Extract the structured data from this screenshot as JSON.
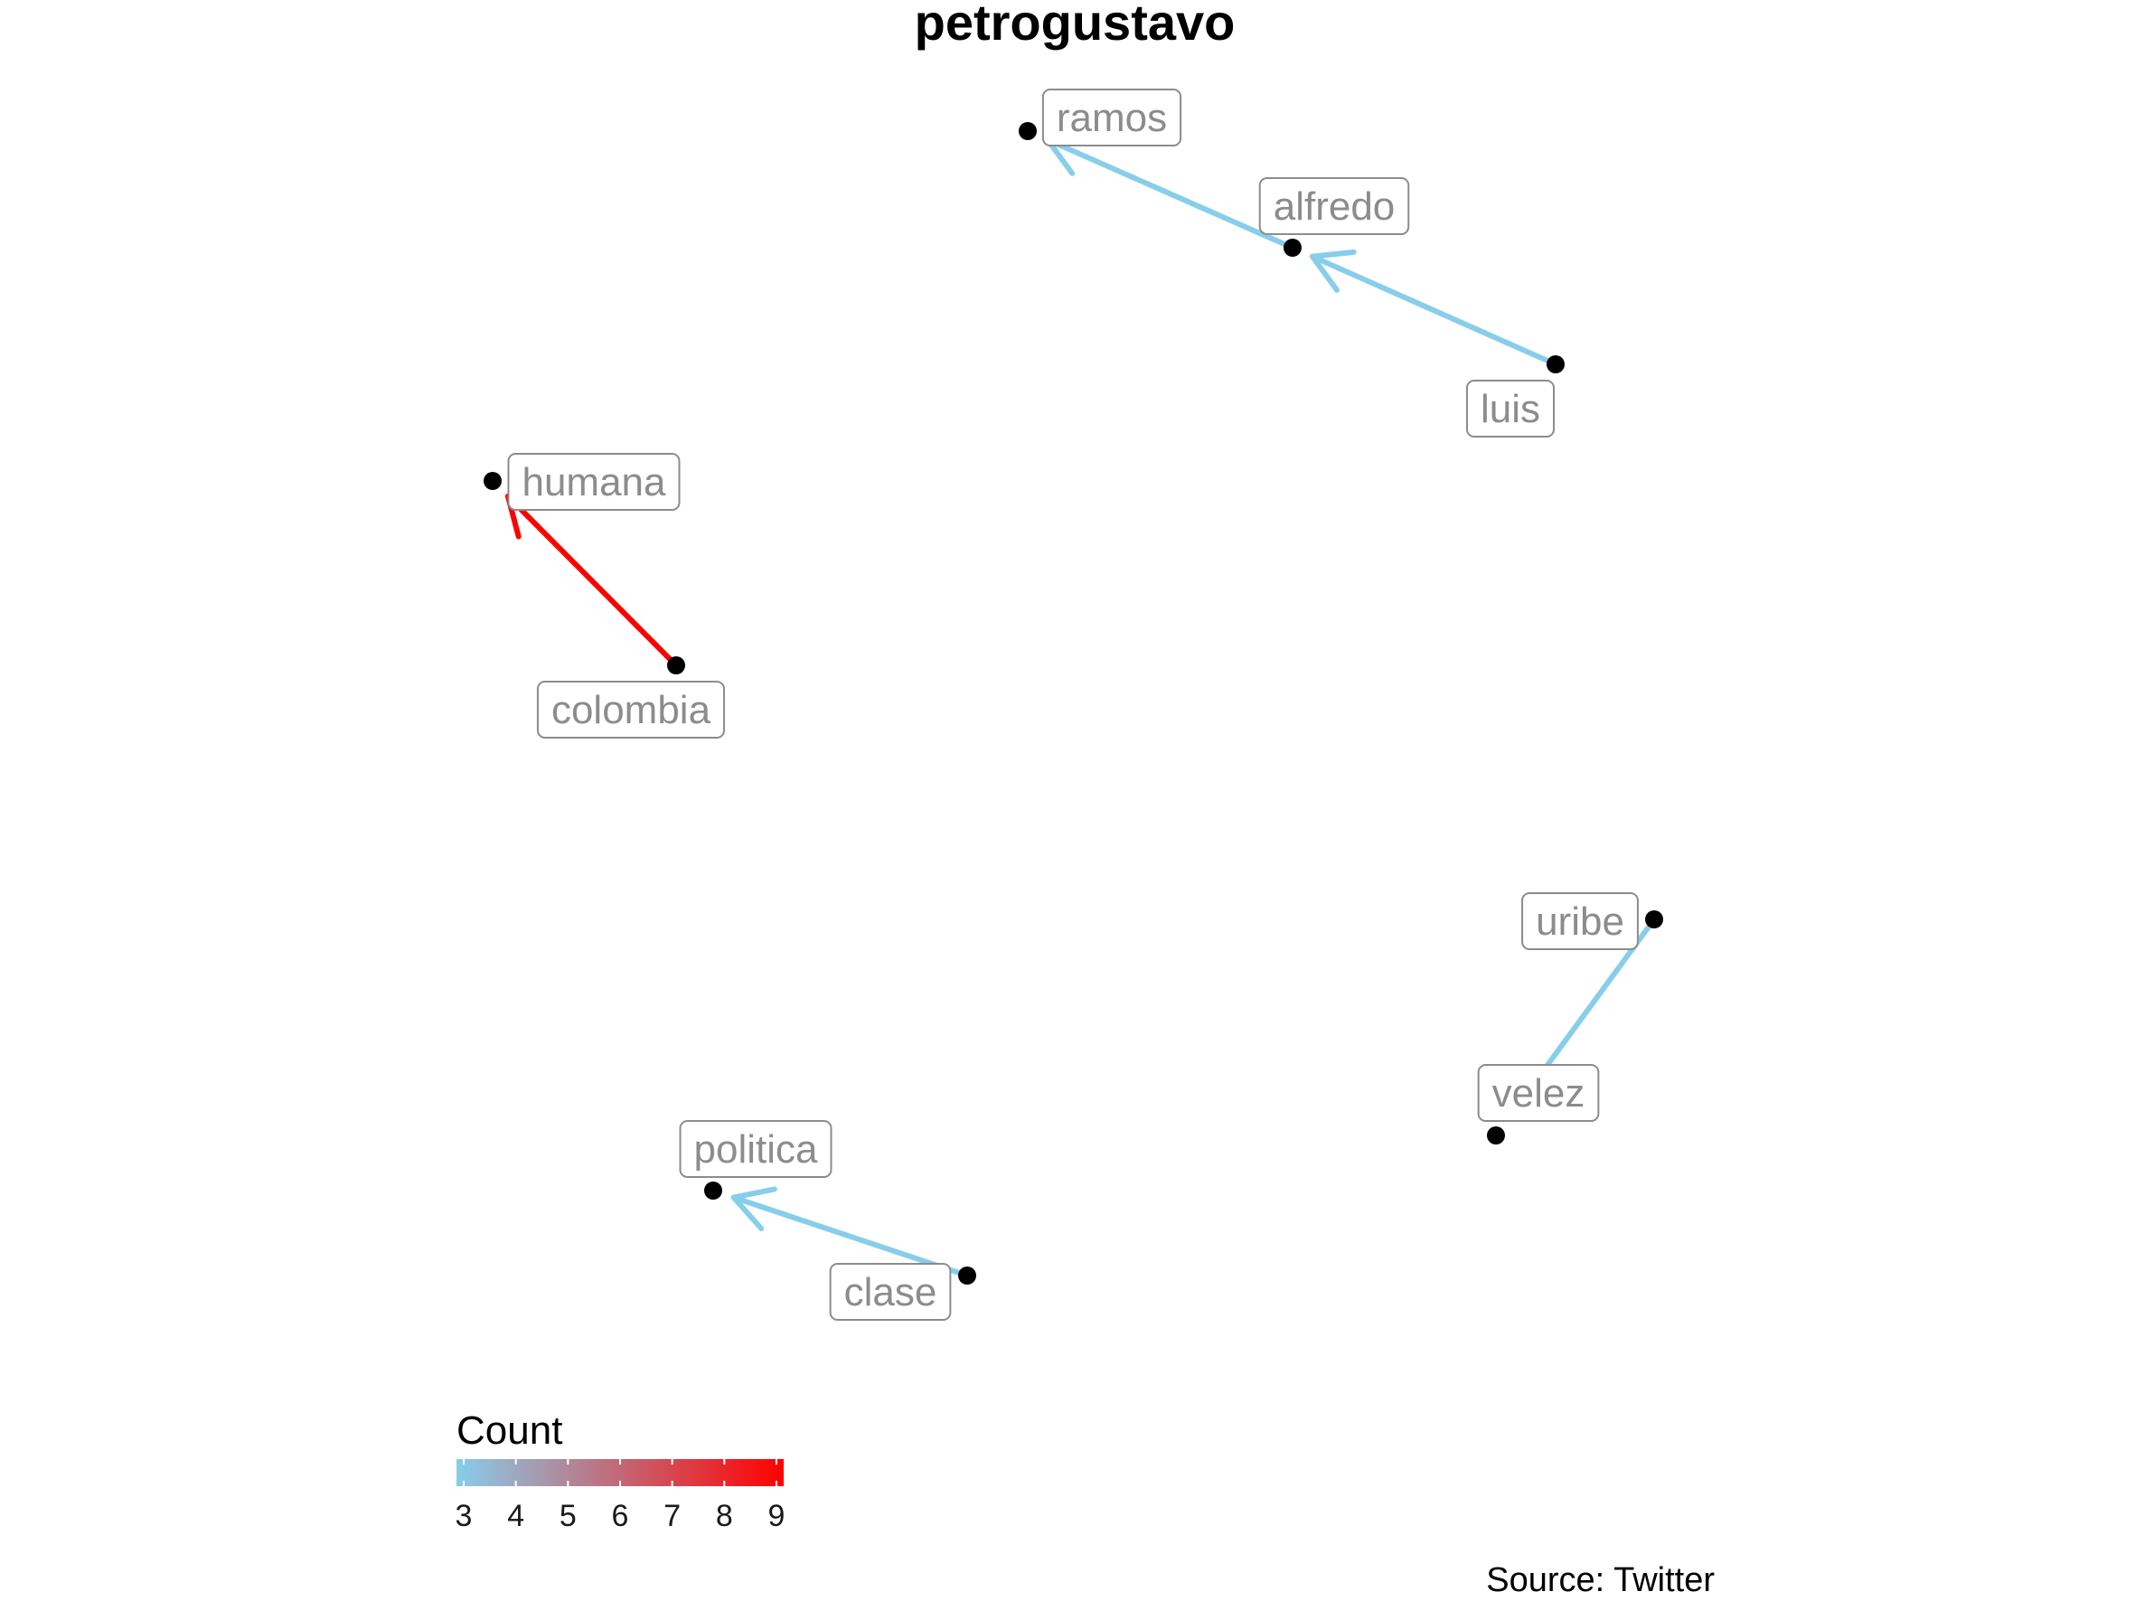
{
  "title": "petrogustavo",
  "caption": "Source: Twitter",
  "legend": {
    "title": "Count",
    "min": 3,
    "max": 9,
    "ticks": [
      "3",
      "4",
      "5",
      "6",
      "7",
      "8",
      "9"
    ],
    "low_color": "#87ceeb",
    "high_color": "#ff0000"
  },
  "chart_data": {
    "type": "network",
    "nodes": [
      {
        "id": "ramos",
        "label": "ramos"
      },
      {
        "id": "alfredo",
        "label": "alfredo"
      },
      {
        "id": "luis",
        "label": "luis"
      },
      {
        "id": "humana",
        "label": "humana"
      },
      {
        "id": "colombia",
        "label": "colombia"
      },
      {
        "id": "uribe",
        "label": "uribe"
      },
      {
        "id": "velez",
        "label": "velez"
      },
      {
        "id": "politica",
        "label": "politica"
      },
      {
        "id": "clase",
        "label": "clase"
      }
    ],
    "edges": [
      {
        "from": "alfredo",
        "to": "ramos",
        "count": 3
      },
      {
        "from": "luis",
        "to": "alfredo",
        "count": 3
      },
      {
        "from": "colombia",
        "to": "humana",
        "count": 9
      },
      {
        "from": "uribe",
        "to": "velez",
        "count": 3
      },
      {
        "from": "clase",
        "to": "politica",
        "count": 3
      }
    ]
  }
}
